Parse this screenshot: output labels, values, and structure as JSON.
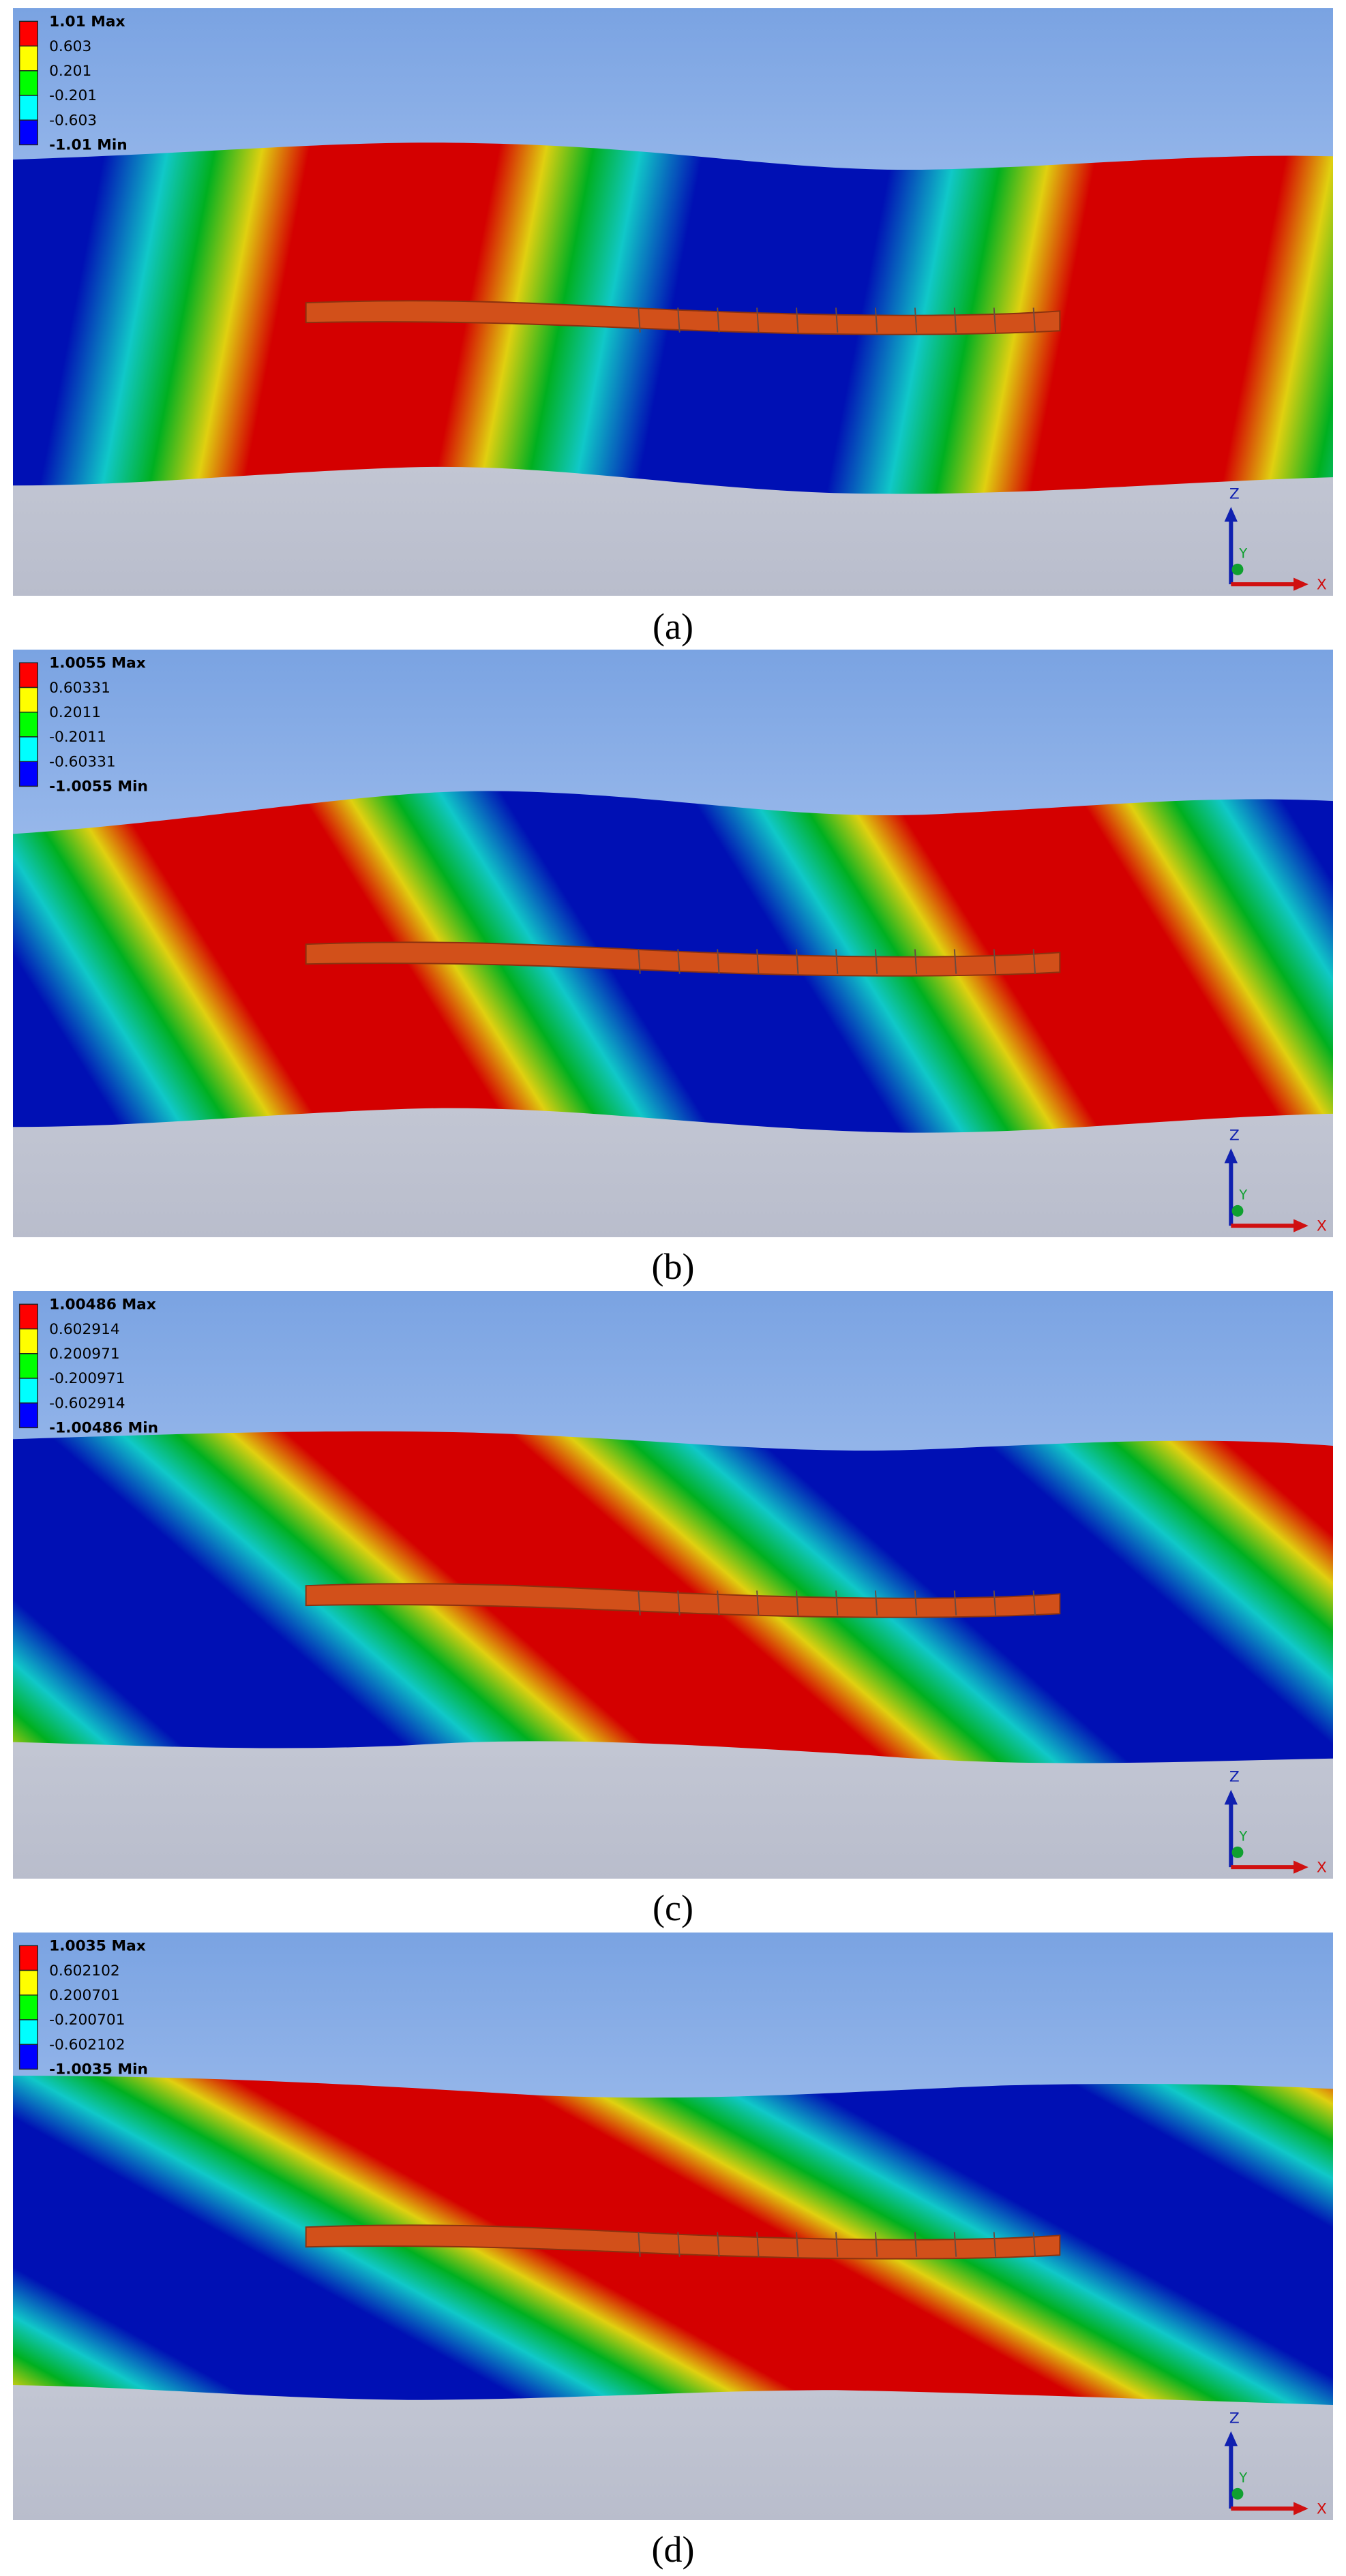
{
  "panels": [
    {
      "legend": {
        "labels": [
          "1.01 Max",
          "0.603",
          "0.201",
          "-0.201",
          "-0.603",
          "-1.01 Min"
        ]
      },
      "triad": {
        "z": "Z",
        "y": "Y",
        "x": "X"
      },
      "caption": "(a)"
    },
    {
      "legend": {
        "labels": [
          "1.0055 Max",
          "0.60331",
          "0.2011",
          "-0.2011",
          "-0.60331",
          "-1.0055 Min"
        ]
      },
      "triad": {
        "z": "Z",
        "y": "Y",
        "x": "X"
      },
      "caption": "(b)"
    },
    {
      "legend": {
        "labels": [
          "1.00486 Max",
          "0.602914",
          "0.200971",
          "-0.200971",
          "-0.602914",
          "-1.00486 Min"
        ]
      },
      "triad": {
        "z": "Z",
        "y": "Y",
        "x": "X"
      },
      "caption": "(c)"
    },
    {
      "legend": {
        "labels": [
          "1.0035 Max",
          "0.602102",
          "0.200701",
          "-0.200701",
          "-0.602102",
          "-1.0035 Min"
        ]
      },
      "triad": {
        "z": "Z",
        "y": "Y",
        "x": "X"
      },
      "caption": "(d)"
    }
  ]
}
